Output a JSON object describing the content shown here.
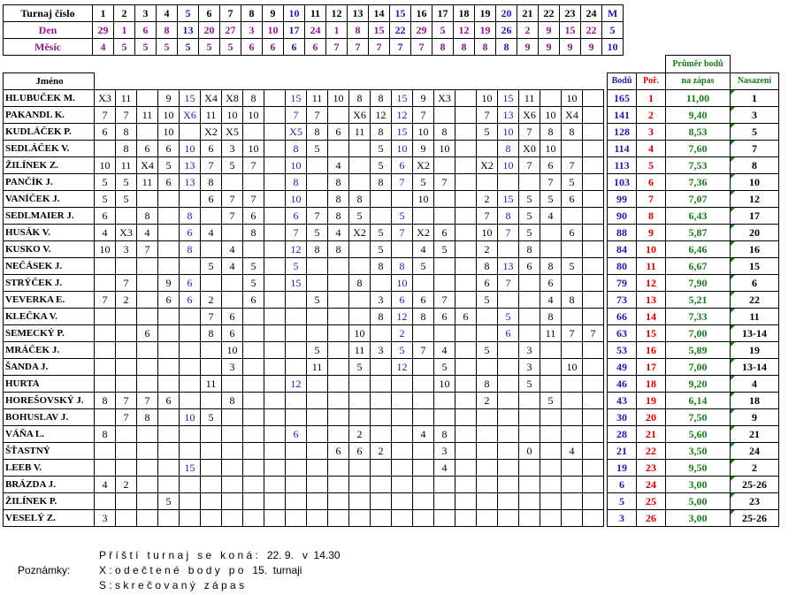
{
  "header": {
    "labels": {
      "turnaj": "Turnaj číslo",
      "den": "Den",
      "mesic": "Měsíc"
    },
    "turnaj": [
      "1",
      "2",
      "3",
      "4",
      "5",
      "6",
      "7",
      "8",
      "9",
      "10",
      "11",
      "12",
      "13",
      "14",
      "15",
      "16",
      "17",
      "18",
      "19",
      "20",
      "21",
      "22",
      "23",
      "24",
      "M"
    ],
    "den": [
      "29",
      "1",
      "6",
      "8",
      "13",
      "20",
      "27",
      "3",
      "10",
      "17",
      "24",
      "1",
      "8",
      "15",
      "22",
      "29",
      "5",
      "12",
      "19",
      "26",
      "2",
      "9",
      "15",
      "22",
      "5"
    ],
    "mesic": [
      "4",
      "5",
      "5",
      "5",
      "5",
      "5",
      "5",
      "6",
      "6",
      "6",
      "6",
      "7",
      "7",
      "7",
      "7",
      "7",
      "8",
      "8",
      "8",
      "8",
      "9",
      "9",
      "9",
      "9",
      "10"
    ]
  },
  "table": {
    "headers": {
      "name": "Jméno",
      "body": "Bodů",
      "por": "Poř.",
      "avg1": "Průměr bodů",
      "avg2": "na zápas",
      "nas": "Nasazení"
    },
    "rows": [
      {
        "name": "HLUBUČEK M.",
        "s": [
          "X3",
          "11",
          "",
          "9",
          "15",
          "X4",
          "X8",
          "8",
          "",
          "15",
          "11",
          "10",
          "8",
          "8",
          "15",
          "9",
          "X3",
          "",
          "10",
          "15",
          "11",
          "",
          "10",
          ""
        ],
        "body": "165",
        "por": "1",
        "avg": "11,00",
        "nas": "1"
      },
      {
        "name": "PAKANDL K.",
        "s": [
          "7",
          "7",
          "11",
          "10",
          "X6",
          "11",
          "10",
          "10",
          "",
          "7",
          "7",
          "",
          "X6",
          "12",
          "12",
          "7",
          "",
          "",
          "7",
          "13",
          "X6",
          "10",
          "X4",
          ""
        ],
        "body": "141",
        "por": "2",
        "avg": "9,40",
        "nas": "3"
      },
      {
        "name": "KUDLÁČEK P.",
        "s": [
          "6",
          "8",
          "",
          "10",
          "",
          "X2",
          "X5",
          "",
          "",
          "X5",
          "8",
          "6",
          "11",
          "8",
          "15",
          "10",
          "8",
          "",
          "5",
          "10",
          "7",
          "8",
          "8",
          ""
        ],
        "body": "128",
        "por": "3",
        "avg": "8,53",
        "nas": "5"
      },
      {
        "name": "SEDLÁČEK V.",
        "s": [
          "",
          "8",
          "6",
          "6",
          "10",
          "6",
          "3",
          "10",
          "",
          "8",
          "5",
          "",
          "",
          "5",
          "10",
          "9",
          "10",
          "",
          "",
          "8",
          "X0",
          "10",
          "",
          ""
        ],
        "body": "114",
        "por": "4",
        "avg": "7,60",
        "nas": "7"
      },
      {
        "name": "ŽILÍNEK Z.",
        "s": [
          "10",
          "11",
          "X4",
          "5",
          "13",
          "7",
          "5",
          "7",
          "",
          "10",
          "",
          "4",
          "",
          "5",
          "6",
          "X2",
          "",
          "",
          "X2",
          "10",
          "7",
          "6",
          "7",
          ""
        ],
        "body": "113",
        "por": "5",
        "avg": "7,53",
        "nas": "8"
      },
      {
        "name": "PANČÍK J.",
        "s": [
          "5",
          "5",
          "11",
          "6",
          "13",
          "8",
          "",
          "",
          "",
          "8",
          "",
          "8",
          "",
          "8",
          "7",
          "5",
          "7",
          "",
          "",
          "",
          "",
          "7",
          "5",
          ""
        ],
        "body": "103",
        "por": "6",
        "avg": "7,36",
        "nas": "10"
      },
      {
        "name": "VANÍČEK J.",
        "s": [
          "5",
          "5",
          "",
          "",
          "",
          "6",
          "7",
          "7",
          "",
          "10",
          "",
          "8",
          "8",
          "",
          "",
          "10",
          "",
          "",
          "2",
          "15",
          "5",
          "5",
          "6",
          ""
        ],
        "body": "99",
        "por": "7",
        "avg": "7,07",
        "nas": "12"
      },
      {
        "name": "SEDLMAIER J.",
        "s": [
          "6",
          "",
          "8",
          "",
          "8",
          "",
          "7",
          "6",
          "",
          "6",
          "7",
          "8",
          "5",
          "",
          "5",
          "",
          "",
          "",
          "7",
          "8",
          "5",
          "4",
          "",
          ""
        ],
        "body": "90",
        "por": "8",
        "avg": "6,43",
        "nas": "17"
      },
      {
        "name": "HUSÁK V.",
        "s": [
          "4",
          "X3",
          "4",
          "",
          "6",
          "4",
          "",
          "8",
          "",
          "7",
          "5",
          "4",
          "X2",
          "5",
          "7",
          "X2",
          "6",
          "",
          "10",
          "7",
          "5",
          "",
          "6",
          ""
        ],
        "body": "88",
        "por": "9",
        "avg": "5,87",
        "nas": "20"
      },
      {
        "name": "KUSKO V.",
        "s": [
          "10",
          "3",
          "7",
          "",
          "8",
          "",
          "4",
          "",
          "",
          "12",
          "8",
          "8",
          "",
          "5",
          "",
          "4",
          "5",
          "",
          "2",
          "",
          "8",
          "",
          "",
          ""
        ],
        "body": "84",
        "por": "10",
        "avg": "6,46",
        "nas": "16"
      },
      {
        "name": "NEČÁSEK J.",
        "s": [
          "",
          "",
          "",
          "",
          "",
          "5",
          "4",
          "5",
          "",
          "5",
          "",
          "",
          "",
          "8",
          "8",
          "5",
          "",
          "",
          "8",
          "13",
          "6",
          "8",
          "5",
          ""
        ],
        "body": "80",
        "por": "11",
        "avg": "6,67",
        "nas": "15"
      },
      {
        "name": "STRÝČEK J.",
        "s": [
          "",
          "7",
          "",
          "9",
          "6",
          "",
          "",
          "5",
          "",
          "15",
          "",
          "",
          "8",
          "",
          "10",
          "",
          "",
          "",
          "6",
          "7",
          "",
          "6",
          "",
          ""
        ],
        "body": "79",
        "por": "12",
        "avg": "7,90",
        "nas": "6"
      },
      {
        "name": "VEVERKA E.",
        "s": [
          "7",
          "2",
          "",
          "6",
          "6",
          "2",
          "",
          "6",
          "",
          "",
          "5",
          "",
          "",
          "3",
          "6",
          "6",
          "7",
          "",
          "5",
          "",
          "",
          "4",
          "8",
          ""
        ],
        "body": "73",
        "por": "13",
        "avg": "5,21",
        "nas": "22"
      },
      {
        "name": "KLEČKA V.",
        "s": [
          "",
          "",
          "",
          "",
          "",
          "7",
          "6",
          "",
          "",
          "",
          "",
          "",
          "",
          "8",
          "12",
          "8",
          "6",
          "6",
          "",
          "5",
          "",
          "8",
          "",
          ""
        ],
        "body": "66",
        "por": "14",
        "avg": "7,33",
        "nas": "11"
      },
      {
        "name": "SEMECKÝ P.",
        "s": [
          "",
          "",
          "6",
          "",
          "",
          "8",
          "6",
          "",
          "",
          "",
          "",
          "",
          "10",
          "",
          "2",
          "",
          "",
          "",
          "",
          "6",
          "",
          "11",
          "7",
          "7"
        ],
        "body": "63",
        "por": "15",
        "avg": "7,00",
        "nas": "13-14"
      },
      {
        "name": "MRÁČEK J.",
        "s": [
          "",
          "",
          "",
          "",
          "",
          "",
          "10",
          "",
          "",
          "",
          "5",
          "",
          "11",
          "3",
          "5",
          "7",
          "4",
          "",
          "5",
          "",
          "3",
          "",
          "",
          ""
        ],
        "body": "53",
        "por": "16",
        "avg": "5,89",
        "nas": "19"
      },
      {
        "name": "ŠANDA J.",
        "s": [
          "",
          "",
          "",
          "",
          "",
          "",
          "3",
          "",
          "",
          "",
          "11",
          "",
          "5",
          "",
          "12",
          "",
          "5",
          "",
          "",
          "",
          "3",
          "",
          "10",
          ""
        ],
        "body": "49",
        "por": "17",
        "avg": "7,00",
        "nas": "13-14"
      },
      {
        "name": "HURTA",
        "s": [
          "",
          "",
          "",
          "",
          "",
          "11",
          "",
          "",
          "",
          "12",
          "",
          "",
          "",
          "",
          "",
          "",
          "10",
          "",
          "8",
          "",
          "5",
          "",
          "",
          ""
        ],
        "body": "46",
        "por": "18",
        "avg": "9,20",
        "nas": "4"
      },
      {
        "name": "HOREŠOVSKÝ J.",
        "s": [
          "8",
          "7",
          "7",
          "6",
          "",
          "",
          "8",
          "",
          "",
          "",
          "",
          "",
          "",
          "",
          "",
          "",
          "",
          "",
          "2",
          "",
          "",
          "5",
          "",
          ""
        ],
        "body": "43",
        "por": "19",
        "avg": "6,14",
        "nas": "18"
      },
      {
        "name": "BOHUSLAV J.",
        "s": [
          "",
          "7",
          "8",
          "",
          "10",
          "5",
          "",
          "",
          "",
          "",
          "",
          "",
          "",
          "",
          "",
          "",
          "",
          "",
          "",
          "",
          "",
          "",
          "",
          ""
        ],
        "body": "30",
        "por": "20",
        "avg": "7,50",
        "nas": "9"
      },
      {
        "name": "VÁŇA L.",
        "s": [
          "8",
          "",
          "",
          "",
          "",
          "",
          "",
          "",
          "",
          "6",
          "",
          "",
          "2",
          "",
          "",
          "4",
          "8",
          "",
          "",
          "",
          "",
          "",
          "",
          ""
        ],
        "body": "28",
        "por": "21",
        "avg": "5,60",
        "nas": "21"
      },
      {
        "name": "ŠŤASTNÝ",
        "s": [
          "",
          "",
          "",
          "",
          "",
          "",
          "",
          "",
          "",
          "",
          "",
          "6",
          "6",
          "2",
          "",
          "",
          "3",
          "",
          "",
          "",
          "0",
          "",
          "4",
          ""
        ],
        "body": "21",
        "por": "22",
        "avg": "3,50",
        "nas": "24"
      },
      {
        "name": "LEEB V.",
        "s": [
          "",
          "",
          "",
          "",
          "15",
          "",
          "",
          "",
          "",
          "",
          "",
          "",
          "",
          "",
          "",
          "",
          "4",
          "",
          "",
          "",
          "",
          "",
          "",
          ""
        ],
        "body": "19",
        "por": "23",
        "avg": "9,50",
        "nas": "2"
      },
      {
        "name": "BRÁZDA J.",
        "s": [
          "4",
          "2",
          "",
          "",
          "",
          "",
          "",
          "",
          "",
          "",
          "",
          "",
          "",
          "",
          "",
          "",
          "",
          "",
          "",
          "",
          "",
          "",
          "",
          ""
        ],
        "body": "6",
        "por": "24",
        "avg": "3,00",
        "nas": "25-26"
      },
      {
        "name": "ŽILÍNEK P.",
        "s": [
          "",
          "",
          "",
          "5",
          "",
          "",
          "",
          "",
          "",
          "",
          "",
          "",
          "",
          "",
          "",
          "",
          "",
          "",
          "",
          "",
          "",
          "",
          "",
          ""
        ],
        "body": "5",
        "por": "25",
        "avg": "5,00",
        "nas": "23"
      },
      {
        "name": "VESELÝ Z.",
        "s": [
          "3",
          "",
          "",
          "",
          "",
          "",
          "",
          "",
          "",
          "",
          "",
          "",
          "",
          "",
          "",
          "",
          "",
          "",
          "",
          "",
          "",
          "",
          "",
          ""
        ],
        "body": "3",
        "por": "26",
        "avg": "3,00",
        "nas": "25-26"
      }
    ]
  },
  "footer": {
    "line1": "P ř í š t í   t u r n a j   s e   k o n á :   22. 9.   v  14.30",
    "label": "Poznámky:",
    "line2": "X : o d e č t e n é   b o d y   p o   15.  turnaji",
    "line3": "S : s k r e č o v a n ý   z á p a s"
  },
  "colors": {
    "blue": "#1c1ca0",
    "purple": "#8b1a8b",
    "green": "#1a7a1a",
    "red": "#cc0000"
  }
}
